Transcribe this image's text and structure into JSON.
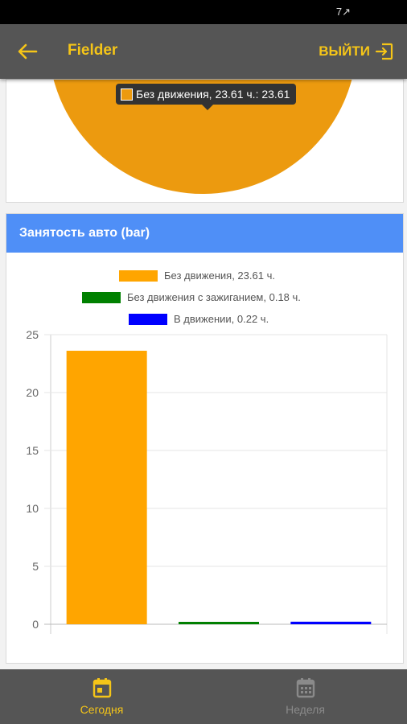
{
  "status_bar": {
    "icons": "7↗"
  },
  "app_bar": {
    "title": "Fielder",
    "logout_label": "ВЫЙТИ"
  },
  "pie_card": {
    "tooltip": "Без движения, 23.61 ч.: 23.61",
    "colors": {
      "slice": "#ec9a0f"
    }
  },
  "bar_card": {
    "title": "Занятость авто (bar)"
  },
  "chart_data": {
    "type": "bar",
    "title": "Занятость авто (bar)",
    "series": [
      {
        "name": "Без движения, 23.61 ч.",
        "value": 23.61,
        "color": "#ffa500"
      },
      {
        "name": "Без движения с зажиганием, 0.18 ч.",
        "value": 0.18,
        "color": "#008000"
      },
      {
        "name": "В движении, 0.22 ч.",
        "value": 0.22,
        "color": "#0000ff"
      }
    ],
    "ylim": [
      0,
      25
    ],
    "yticks": [
      0,
      5,
      10,
      15,
      20,
      25
    ],
    "grid": true,
    "legend": "top"
  },
  "bottom_nav": {
    "today_label": "Сегодня",
    "week_label": "Неделя"
  },
  "colors": {
    "accent": "#f5c518",
    "appbar": "#555555",
    "card_header": "#4f8ff7"
  }
}
